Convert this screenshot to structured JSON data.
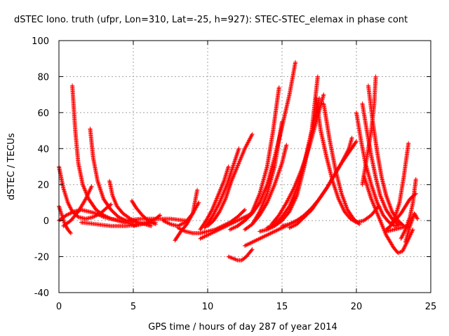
{
  "chart_data": {
    "type": "scatter",
    "title": "dSTEC Iono. truth (ufpr, Lon=310, Lat=-25, h=927): STEC-STEC_elemax in phase cont",
    "xlabel": "GPS time / hours of day 287 of year 2014",
    "ylabel": "dSTEC  / TECUs",
    "xlim": [
      0,
      25
    ],
    "ylim": [
      -40,
      100
    ],
    "xticks": [
      "0",
      "5",
      "10",
      "15",
      "20",
      "25"
    ],
    "yticks": [
      "-40",
      "-20",
      "0",
      "20",
      "40",
      "60",
      "80",
      "100"
    ],
    "grid": true,
    "marker": "+",
    "color": "#ff0000",
    "series": [
      {
        "x": [
          0.0,
          0.3,
          0.6,
          0.9,
          1.3,
          1.8,
          2.3,
          2.8,
          3.2,
          3.5
        ],
        "y": [
          30,
          18,
          10,
          5,
          2,
          1,
          2,
          4,
          7,
          9
        ]
      },
      {
        "x": [
          0.0,
          0.2,
          0.4,
          0.6,
          0.8
        ],
        "y": [
          8,
          3,
          -2,
          -5,
          -7
        ]
      },
      {
        "x": [
          0.0,
          0.5,
          1.0,
          1.5,
          2.0,
          2.5,
          3.0,
          3.5,
          4.0,
          4.5,
          5.0
        ],
        "y": [
          0,
          3,
          5,
          6,
          5,
          4,
          2,
          1,
          0,
          -1,
          -2
        ]
      },
      {
        "x": [
          0.9,
          1.1,
          1.3,
          1.6,
          2.0,
          2.5,
          3.0,
          3.5,
          4.0,
          4.5
        ],
        "y": [
          75,
          50,
          32,
          20,
          12,
          6,
          3,
          1,
          0,
          -1
        ]
      },
      {
        "x": [
          2.1,
          2.3,
          2.6,
          3.0,
          3.5,
          4.0,
          4.5,
          5.0
        ],
        "y": [
          51,
          35,
          22,
          12,
          6,
          2,
          0,
          -1
        ]
      },
      {
        "x": [
          0.3,
          0.8,
          1.3,
          1.8,
          2.2
        ],
        "y": [
          -3,
          0,
          5,
          12,
          19
        ]
      },
      {
        "x": [
          3.4,
          3.6,
          3.9,
          4.3,
          4.8,
          5.3,
          5.8,
          6.2
        ],
        "y": [
          22,
          14,
          8,
          4,
          1,
          -1,
          -2,
          -3
        ]
      },
      {
        "x": [
          4.9,
          5.2,
          5.6,
          6.0,
          6.5
        ],
        "y": [
          11,
          7,
          3,
          0,
          -2
        ]
      },
      {
        "x": [
          1.5,
          2.5,
          3.5,
          4.5,
          5.5,
          6.5
        ],
        "y": [
          -1,
          -2,
          -3,
          -3,
          -2,
          -1
        ]
      },
      {
        "x": [
          5.0,
          5.5,
          6.0,
          6.5,
          6.8
        ],
        "y": [
          -3,
          -2,
          -1,
          1,
          3
        ]
      },
      {
        "x": [
          4.5,
          5.5,
          6.5,
          7.5,
          8.5
        ],
        "y": [
          0,
          1,
          1,
          1,
          0
        ]
      },
      {
        "x": [
          7.0,
          7.5,
          8.0,
          8.5,
          9.0,
          9.3
        ],
        "y": [
          0,
          -2,
          -3,
          -1,
          4,
          17
        ]
      },
      {
        "x": [
          7.8,
          8.2,
          8.6,
          9.0,
          9.4
        ],
        "y": [
          -11,
          -6,
          -2,
          4,
          10
        ]
      },
      {
        "x": [
          8.0,
          8.5,
          9.0,
          9.5,
          10.0,
          10.5,
          11.0,
          11.5,
          12.0,
          12.5
        ],
        "y": [
          -4,
          -6,
          -7,
          -7,
          -6,
          -5,
          -3,
          -1,
          2,
          6
        ]
      },
      {
        "x": [
          9.5,
          10.0,
          10.5,
          11.0,
          11.5,
          12.0,
          12.5,
          13.0
        ],
        "y": [
          -10,
          -8,
          -6,
          -4,
          -2,
          0,
          2,
          4
        ]
      },
      {
        "x": [
          10.0,
          10.4,
          10.8,
          11.2,
          11.6,
          12.0,
          12.5,
          13.0
        ],
        "y": [
          -3,
          0,
          5,
          12,
          22,
          30,
          40,
          48
        ]
      },
      {
        "x": [
          9.8,
          10.3,
          10.8,
          11.3,
          11.7,
          12.1
        ],
        "y": [
          -4,
          2,
          10,
          20,
          30,
          40
        ]
      },
      {
        "x": [
          9.5,
          9.9,
          10.3,
          10.7,
          11.1,
          11.4
        ],
        "y": [
          -5,
          0,
          6,
          14,
          22,
          30
        ]
      },
      {
        "x": [
          11.4,
          11.7,
          12.0,
          12.3,
          12.6,
          13.0
        ],
        "y": [
          -20,
          -21,
          -22,
          -22,
          -20,
          -16
        ]
      },
      {
        "x": [
          12.5,
          13.0,
          13.5,
          14.0,
          14.5,
          15.0,
          15.5,
          16.0,
          16.5
        ],
        "y": [
          -14,
          -12,
          -10,
          -8,
          -6,
          -4,
          -2,
          0,
          2
        ]
      },
      {
        "x": [
          11.5,
          12.0,
          12.5,
          13.0,
          13.5,
          14.0,
          14.4,
          14.8
        ],
        "y": [
          -5,
          -3,
          0,
          5,
          15,
          30,
          50,
          74
        ]
      },
      {
        "x": [
          12.0,
          12.5,
          13.0,
          13.5,
          14.0,
          14.5,
          15.0,
          15.5,
          15.9
        ],
        "y": [
          -3,
          0,
          4,
          10,
          20,
          35,
          52,
          70,
          88
        ]
      },
      {
        "x": [
          13.0,
          13.5,
          14.0,
          14.5,
          14.8,
          15.0
        ],
        "y": [
          -2,
          5,
          15,
          30,
          45,
          55
        ]
      },
      {
        "x": [
          12.5,
          13.0,
          13.5,
          14.0,
          14.5,
          15.0,
          15.3
        ],
        "y": [
          -5,
          -2,
          3,
          10,
          20,
          32,
          42
        ]
      },
      {
        "x": [
          13.5,
          14.0,
          14.5,
          15.0,
          15.5,
          16.0,
          16.5,
          17.0,
          17.4
        ],
        "y": [
          -6,
          -5,
          -3,
          0,
          5,
          14,
          30,
          50,
          80
        ]
      },
      {
        "x": [
          14.0,
          14.5,
          15.0,
          15.5,
          16.0,
          16.5,
          17.0,
          17.5
        ],
        "y": [
          -4,
          -2,
          2,
          8,
          18,
          32,
          50,
          68
        ]
      },
      {
        "x": [
          14.3,
          14.8,
          15.3,
          15.8,
          16.3,
          16.8,
          17.3,
          17.8
        ],
        "y": [
          -2,
          3,
          10,
          18,
          28,
          40,
          55,
          70
        ]
      },
      {
        "x": [
          15.0,
          15.5,
          16.0,
          16.5,
          17.0,
          17.5,
          18.0,
          18.5,
          19.0,
          19.5,
          20.0
        ],
        "y": [
          -3,
          -2,
          0,
          3,
          7,
          12,
          18,
          25,
          32,
          38,
          44
        ]
      },
      {
        "x": [
          15.5,
          16.0,
          16.5,
          17.0,
          17.5,
          18.0,
          18.5,
          19.0,
          19.5,
          19.7
        ],
        "y": [
          -4,
          -2,
          2,
          6,
          12,
          18,
          25,
          32,
          40,
          46
        ]
      },
      {
        "x": [
          17.3,
          17.6,
          18.0,
          18.4,
          18.8,
          19.2,
          19.6,
          20.0,
          20.5,
          21.0,
          21.5
        ],
        "y": [
          68,
          50,
          35,
          22,
          12,
          5,
          1,
          -1,
          0,
          3,
          8
        ]
      },
      {
        "x": [
          17.8,
          18.2,
          18.6,
          19.0,
          19.4,
          19.8,
          20.2
        ],
        "y": [
          65,
          45,
          28,
          15,
          6,
          1,
          -2
        ]
      },
      {
        "x": [
          20.0,
          20.3,
          20.6,
          21.0,
          21.4,
          21.8,
          22.2,
          22.6,
          23.0
        ],
        "y": [
          60,
          45,
          32,
          20,
          10,
          3,
          -1,
          -3,
          -2
        ]
      },
      {
        "x": [
          20.4,
          20.7,
          21.0,
          21.3,
          21.6,
          22.0,
          22.4,
          22.8
        ],
        "y": [
          65,
          50,
          36,
          24,
          14,
          6,
          1,
          -2
        ]
      },
      {
        "x": [
          20.8,
          21.1,
          21.4,
          21.7,
          22.0,
          22.4,
          22.8,
          23.2
        ],
        "y": [
          75,
          55,
          38,
          24,
          14,
          5,
          0,
          -3
        ]
      },
      {
        "x": [
          21.3,
          21.2,
          21.0,
          20.8,
          20.6,
          20.4
        ],
        "y": [
          80,
          65,
          50,
          40,
          30,
          20
        ]
      },
      {
        "x": [
          20.5,
          21.0,
          21.5,
          22.0,
          22.5,
          22.8,
          23.1,
          23.4,
          23.8
        ],
        "y": [
          25,
          12,
          2,
          -8,
          -15,
          -18,
          -17,
          -12,
          -5
        ]
      },
      {
        "x": [
          22.0,
          22.3,
          22.6,
          23.0,
          23.3,
          23.6,
          24.0
        ],
        "y": [
          -5,
          -3,
          0,
          4,
          8,
          12,
          15
        ]
      },
      {
        "x": [
          22.3,
          22.6,
          22.9,
          23.2,
          23.5
        ],
        "y": [
          -3,
          2,
          10,
          25,
          43
        ]
      },
      {
        "x": [
          23.0,
          23.3,
          23.6,
          23.8,
          24.0
        ],
        "y": [
          -10,
          -5,
          2,
          10,
          23
        ]
      },
      {
        "x": [
          23.3,
          23.6,
          23.9,
          24.1
        ],
        "y": [
          -12,
          -3,
          4,
          1
        ]
      },
      {
        "x": [
          22.0,
          22.5,
          23.0,
          23.5
        ],
        "y": [
          -6,
          -5,
          -4,
          -3
        ]
      }
    ]
  }
}
